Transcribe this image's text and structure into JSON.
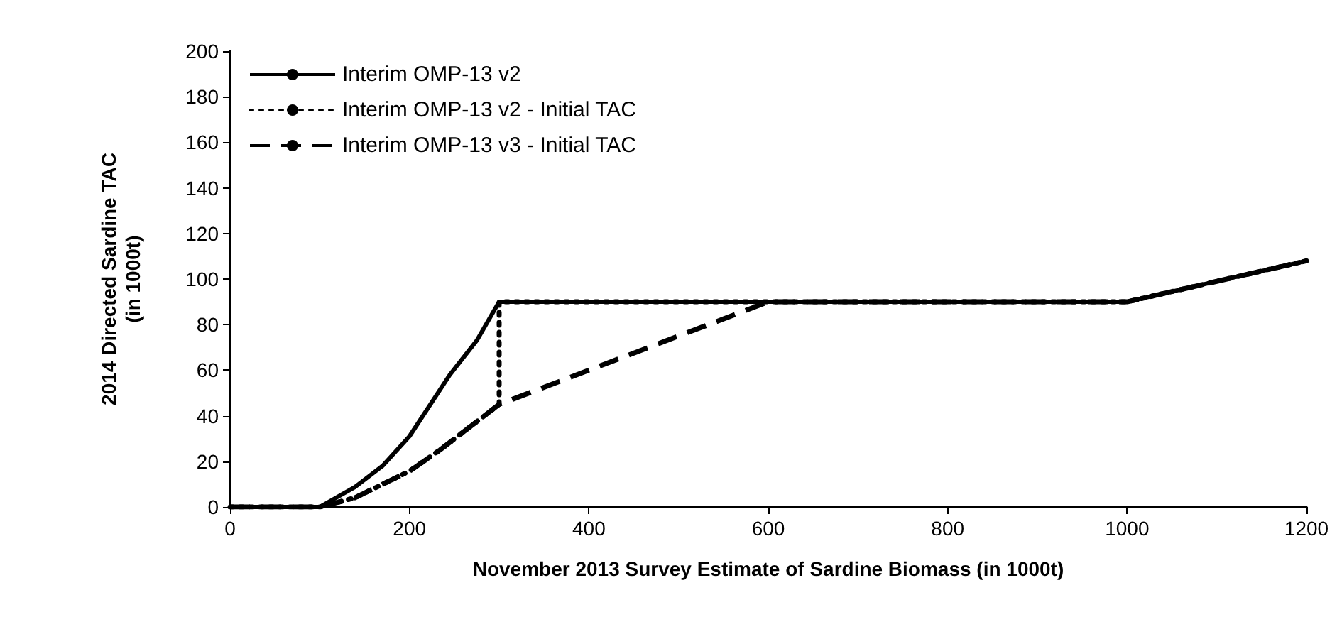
{
  "chart_data": {
    "type": "line",
    "xlabel": "November 2013 Survey Estimate of Sardine Biomass (in 1000t)",
    "ylabel": "2014 Directed Sardine TAC\n(in 1000t)",
    "xlim": [
      0,
      1200
    ],
    "ylim": [
      0,
      200
    ],
    "xticks": [
      0,
      200,
      400,
      600,
      800,
      1000,
      1200
    ],
    "yticks": [
      0,
      20,
      40,
      60,
      80,
      100,
      120,
      140,
      160,
      180,
      200
    ],
    "legend": "top left",
    "series": [
      {
        "name": "Interim OMP-13 v2",
        "color": "#000000",
        "line_style": "solid",
        "x": [
          0,
          100,
          139,
          170,
          200,
          245,
          275,
          300,
          1000,
          1200
        ],
        "values": [
          0,
          0,
          8.7,
          18,
          31,
          58,
          73,
          90,
          90,
          108
        ]
      },
      {
        "name": "Interim OMP-13 v2 - Initial TAC",
        "color": "#000000",
        "line_style": "dotted",
        "x": [
          0,
          100,
          139,
          200,
          234,
          300,
          300,
          1000,
          1200
        ],
        "values": [
          0,
          0,
          4,
          15.7,
          25,
          45,
          90,
          90,
          108
        ]
      },
      {
        "name": "Interim OMP-13 v3 - Initial TAC",
        "color": "#000000",
        "line_style": "dashed",
        "x": [
          0,
          100,
          139,
          200,
          234,
          300,
          600,
          1000,
          1200
        ],
        "values": [
          0,
          0,
          4,
          15.7,
          25,
          45,
          90,
          90,
          108
        ]
      }
    ]
  }
}
